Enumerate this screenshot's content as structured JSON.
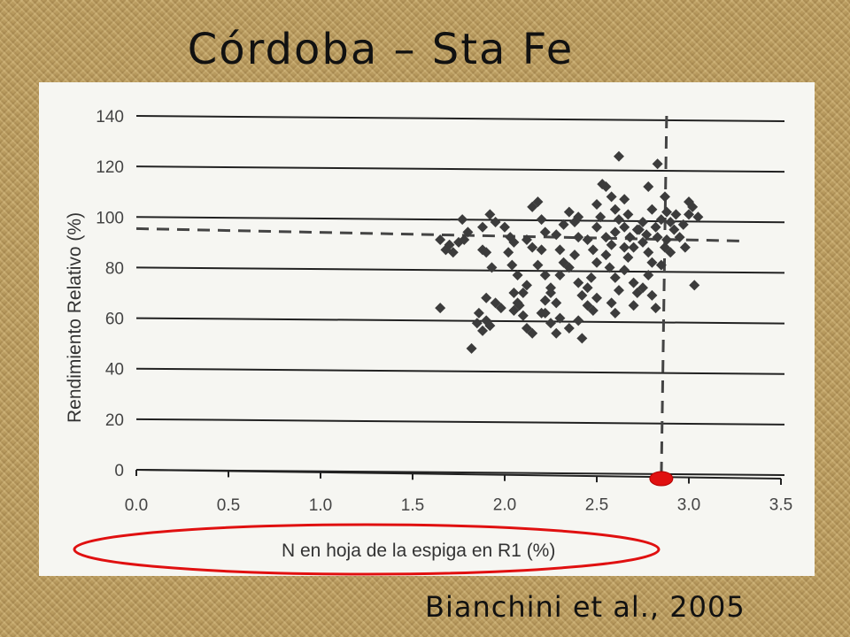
{
  "slide": {
    "title": "Córdoba – Sta Fe",
    "credit": "Bianchini et al., 2005"
  },
  "chart_data": {
    "type": "scatter",
    "title": "",
    "xlabel": "N en hoja de la espiga en R1 (%)",
    "ylabel": "Rendimiento Relativo (%)",
    "xlim": [
      0.0,
      3.5
    ],
    "ylim": [
      0,
      140
    ],
    "x_ticks": [
      "0.0",
      "0.5",
      "1.0",
      "1.5",
      "2.0",
      "2.5",
      "3.0",
      "3.5"
    ],
    "y_ticks": [
      "0",
      "20",
      "40",
      "60",
      "80",
      "100",
      "120",
      "140"
    ],
    "grid": "horizontal",
    "marker": "diamond",
    "marker_color": "#3c3c3c",
    "reference_lines": {
      "horizontal_y": 94,
      "vertical_x": 2.86
    },
    "highlight": {
      "critical_point_x": 2.86,
      "color": "#e01010"
    },
    "points": [
      [
        1.65,
        91
      ],
      [
        1.68,
        87
      ],
      [
        1.7,
        89
      ],
      [
        1.72,
        86
      ],
      [
        1.75,
        90
      ],
      [
        1.78,
        91
      ],
      [
        1.77,
        99
      ],
      [
        1.8,
        94
      ],
      [
        1.65,
        64
      ],
      [
        1.82,
        48
      ],
      [
        1.85,
        58
      ],
      [
        1.88,
        55
      ],
      [
        1.9,
        59
      ],
      [
        1.92,
        57
      ],
      [
        1.86,
        62
      ],
      [
        1.95,
        66
      ],
      [
        1.98,
        64
      ],
      [
        1.9,
        68
      ],
      [
        1.93,
        80
      ],
      [
        1.88,
        87
      ],
      [
        1.9,
        86
      ],
      [
        1.88,
        96
      ],
      [
        1.92,
        101
      ],
      [
        1.95,
        98
      ],
      [
        2.0,
        96
      ],
      [
        2.03,
        92
      ],
      [
        2.05,
        90
      ],
      [
        2.02,
        86
      ],
      [
        2.04,
        81
      ],
      [
        2.07,
        77
      ],
      [
        2.05,
        63
      ],
      [
        2.07,
        66
      ],
      [
        2.08,
        65
      ],
      [
        2.1,
        61
      ],
      [
        2.12,
        56
      ],
      [
        2.15,
        54
      ],
      [
        2.1,
        70
      ],
      [
        2.12,
        73
      ],
      [
        2.15,
        88
      ],
      [
        2.12,
        91
      ],
      [
        2.15,
        104
      ],
      [
        2.18,
        106
      ],
      [
        2.2,
        99
      ],
      [
        2.22,
        94
      ],
      [
        2.2,
        87
      ],
      [
        2.18,
        81
      ],
      [
        2.22,
        77
      ],
      [
        2.25,
        72
      ],
      [
        2.22,
        67
      ],
      [
        2.2,
        62
      ],
      [
        2.25,
        58
      ],
      [
        2.28,
        54
      ],
      [
        2.3,
        60
      ],
      [
        2.28,
        66
      ],
      [
        2.25,
        70
      ],
      [
        2.3,
        77
      ],
      [
        2.32,
        82
      ],
      [
        2.3,
        87
      ],
      [
        2.28,
        93
      ],
      [
        2.32,
        97
      ],
      [
        2.35,
        102
      ],
      [
        2.38,
        98
      ],
      [
        2.4,
        92
      ],
      [
        2.38,
        85
      ],
      [
        2.35,
        80
      ],
      [
        2.4,
        74
      ],
      [
        2.42,
        69
      ],
      [
        2.45,
        65
      ],
      [
        2.4,
        59
      ],
      [
        2.42,
        52
      ],
      [
        2.48,
        63
      ],
      [
        2.5,
        68
      ],
      [
        2.45,
        72
      ],
      [
        2.47,
        76
      ],
      [
        2.5,
        82
      ],
      [
        2.48,
        87
      ],
      [
        2.45,
        91
      ],
      [
        2.5,
        96
      ],
      [
        2.52,
        100
      ],
      [
        2.5,
        105
      ],
      [
        2.55,
        112
      ],
      [
        2.53,
        113
      ],
      [
        2.58,
        108
      ],
      [
        2.6,
        103
      ],
      [
        2.62,
        99
      ],
      [
        2.6,
        94
      ],
      [
        2.58,
        89
      ],
      [
        2.55,
        85
      ],
      [
        2.57,
        80
      ],
      [
        2.6,
        76
      ],
      [
        2.62,
        71
      ],
      [
        2.58,
        66
      ],
      [
        2.6,
        62
      ],
      [
        2.62,
        124
      ],
      [
        2.65,
        107
      ],
      [
        2.67,
        101
      ],
      [
        2.65,
        96
      ],
      [
        2.68,
        92
      ],
      [
        2.7,
        88
      ],
      [
        2.67,
        84
      ],
      [
        2.65,
        79
      ],
      [
        2.7,
        74
      ],
      [
        2.72,
        70
      ],
      [
        2.7,
        65
      ],
      [
        2.75,
        98
      ],
      [
        2.73,
        95
      ],
      [
        2.75,
        90
      ],
      [
        2.78,
        86
      ],
      [
        2.8,
        82
      ],
      [
        2.78,
        77
      ],
      [
        2.75,
        72
      ],
      [
        2.8,
        69
      ],
      [
        2.82,
        64
      ],
      [
        2.85,
        81
      ],
      [
        2.83,
        92
      ],
      [
        2.82,
        96
      ],
      [
        2.85,
        99
      ],
      [
        2.8,
        103
      ],
      [
        2.78,
        112
      ],
      [
        2.83,
        121
      ],
      [
        2.87,
        108
      ],
      [
        2.88,
        102
      ],
      [
        2.9,
        98
      ],
      [
        2.92,
        95
      ],
      [
        2.88,
        91
      ],
      [
        2.9,
        86
      ],
      [
        2.95,
        92
      ],
      [
        2.97,
        97
      ],
      [
        3.0,
        101
      ],
      [
        3.02,
        104
      ],
      [
        2.98,
        88
      ],
      [
        3.05,
        100
      ],
      [
        3.03,
        73
      ],
      [
        3.0,
        106
      ],
      [
        2.93,
        101
      ],
      [
        2.87,
        88
      ],
      [
        2.22,
        62
      ],
      [
        2.35,
        56
      ],
      [
        2.05,
        70
      ],
      [
        2.4,
        100
      ],
      [
        2.55,
        92
      ],
      [
        2.65,
        88
      ],
      [
        2.72,
        95
      ],
      [
        2.77,
        93
      ]
    ]
  }
}
